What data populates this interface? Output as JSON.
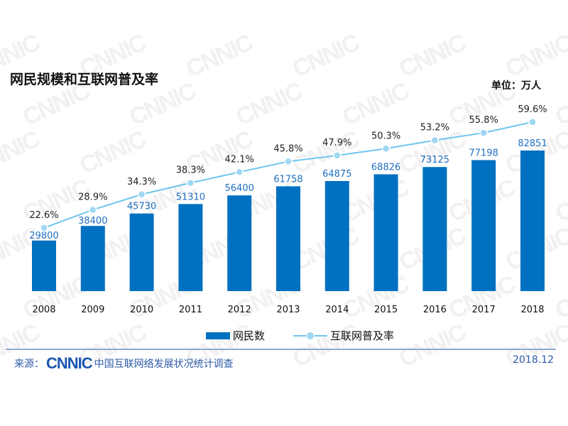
{
  "title": "网民规模和互联网普及率",
  "unit": "单位：万人",
  "legend": {
    "bar": "网民数",
    "line": "互联网普及率"
  },
  "source": {
    "label": "来源：",
    "logo": "CNNIC",
    "org": "中国互联网络发展状况统计调查",
    "date": "2018.12"
  },
  "watermark": "CNNIC",
  "colors": {
    "bar": "#0070c0",
    "line": "#6ec6ec",
    "marker": "#9fd8f2",
    "bar_label": "#1f6fc0"
  },
  "chart_data": {
    "type": "bar+line",
    "categories": [
      "2008",
      "2009",
      "2010",
      "2011",
      "2012",
      "2013",
      "2014",
      "2015",
      "2016",
      "2017",
      "2018"
    ],
    "series": [
      {
        "name": "网民数",
        "type": "bar",
        "values": [
          29800,
          38400,
          45730,
          51310,
          56400,
          61758,
          64875,
          68826,
          73125,
          77198,
          82851
        ],
        "labels": [
          "29800",
          "38400",
          "45730",
          "51310",
          "56400",
          "61758",
          "64875",
          "68826",
          "73125",
          "77198",
          "82851"
        ]
      },
      {
        "name": "互联网普及率",
        "type": "line",
        "values": [
          22.6,
          28.9,
          34.3,
          38.3,
          42.1,
          45.8,
          47.9,
          50.3,
          53.2,
          55.8,
          59.6
        ],
        "labels": [
          "22.6%",
          "28.9%",
          "34.3%",
          "38.3%",
          "42.1%",
          "45.8%",
          "47.9%",
          "50.3%",
          "53.2%",
          "55.8%",
          "59.6%"
        ]
      }
    ],
    "grid": false,
    "legend_position": "bottom"
  }
}
